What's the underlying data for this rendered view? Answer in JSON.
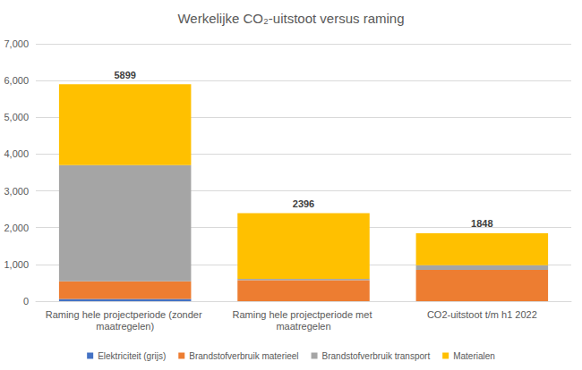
{
  "chart_data": {
    "type": "bar",
    "title": "Werkelijke CO₂-uitstoot versus raming",
    "categories": [
      "Raming hele projectperiode (zonder maatregelen)",
      "Raming hele projectperiode met maatregelen",
      "CO2-uitstoot t/m h1 2022"
    ],
    "series": [
      {
        "name": "Elektriciteit (grijs)",
        "color": "#4472c4",
        "values": [
          60,
          0,
          0
        ]
      },
      {
        "name": "Brandstofverbruik materieel",
        "color": "#ed7d31",
        "values": [
          480,
          570,
          850
        ]
      },
      {
        "name": "Brandstofverbruik transport",
        "color": "#a5a5a5",
        "values": [
          3160,
          40,
          130
        ]
      },
      {
        "name": "Materialen",
        "color": "#ffc000",
        "values": [
          2199,
          1786,
          868
        ]
      }
    ],
    "totals": [
      5899,
      2396,
      1848
    ],
    "stacked": true,
    "ylim": [
      0,
      7000
    ],
    "yticks": [
      0,
      1000,
      2000,
      3000,
      4000,
      5000,
      6000,
      7000
    ],
    "grid": true,
    "legend": "bottom"
  }
}
